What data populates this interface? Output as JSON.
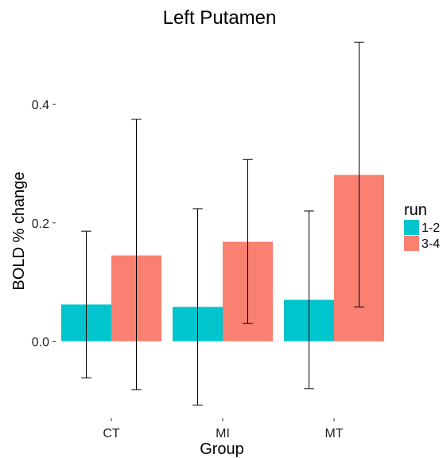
{
  "chart_data": {
    "type": "bar",
    "title": "Left Putamen",
    "xlabel": "Group",
    "ylabel": "BOLD % change",
    "categories": [
      "CT",
      "MI",
      "MT"
    ],
    "ylim": [
      -0.13,
      0.52
    ],
    "yticks": [
      0.0,
      0.2,
      0.4
    ],
    "ytick_labels": [
      "0.0",
      "0.2",
      "0.4"
    ],
    "grid": false,
    "legend": {
      "title": "run",
      "position": "right"
    },
    "series": [
      {
        "name": "1-2",
        "color": "#00C5CD",
        "values": [
          0.062,
          0.058,
          0.07
        ],
        "err_low": [
          -0.062,
          -0.108,
          -0.08
        ],
        "err_high": [
          0.186,
          0.224,
          0.22
        ]
      },
      {
        "name": "3-4",
        "color": "#FA8072",
        "values": [
          0.145,
          0.168,
          0.281
        ],
        "err_low": [
          -0.082,
          0.03,
          0.058
        ],
        "err_high": [
          0.375,
          0.307,
          0.505
        ]
      }
    ]
  }
}
